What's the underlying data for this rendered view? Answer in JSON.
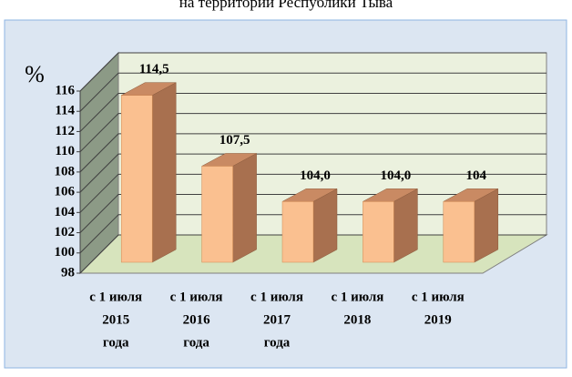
{
  "chart_data": {
    "type": "bar3d",
    "title": "на территории Республики Тыва",
    "y_label": "%",
    "categories": [
      [
        "с 1 июля",
        "2015",
        "года"
      ],
      [
        "с 1 июля",
        "2016",
        "года"
      ],
      [
        "с 1 июля",
        "2017",
        "года"
      ],
      [
        "с 1 июля",
        "2018"
      ],
      [
        "с 1 июля",
        "2019"
      ]
    ],
    "values": [
      114.5,
      107.5,
      104.0,
      104.0,
      104
    ],
    "value_labels": [
      "114,5",
      "107,5",
      "104,0",
      "104,0",
      "104"
    ],
    "color": "#fac090",
    "ylim": [
      98,
      116
    ],
    "yticks": [
      98,
      100,
      102,
      104,
      106,
      108,
      110,
      112,
      114,
      116
    ],
    "grid": true
  }
}
